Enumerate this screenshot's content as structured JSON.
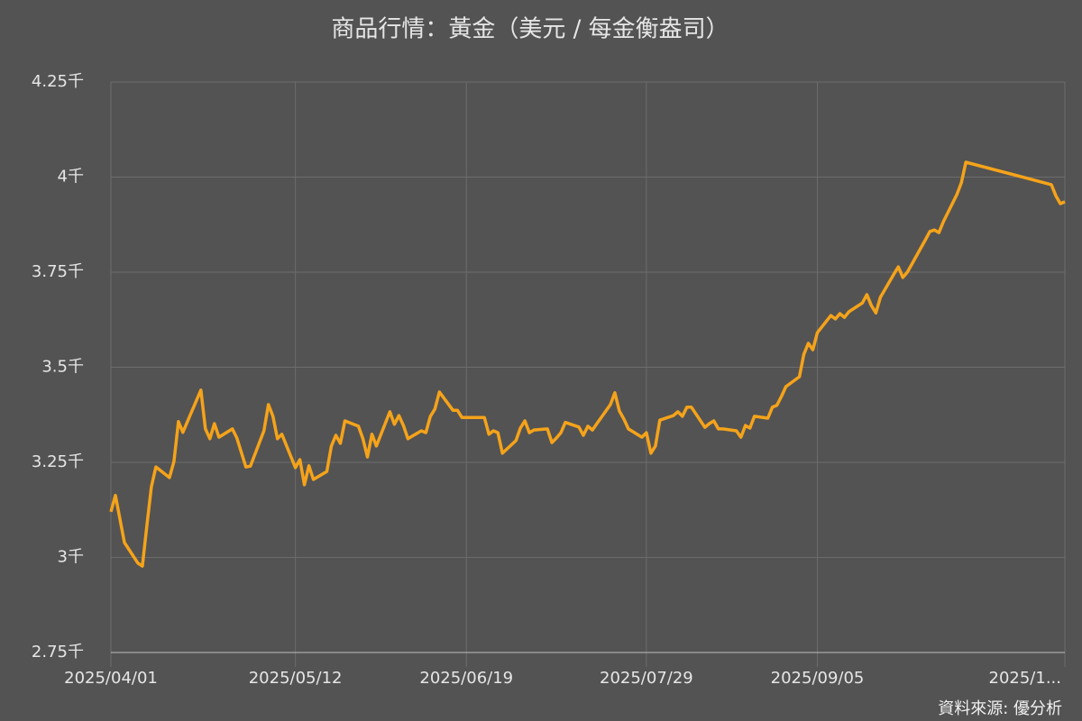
{
  "chart_data": {
    "type": "line",
    "title": "商品行情：黃金（美元 / 每金衡盎司）",
    "source": "資料來源: 優分析",
    "grid": true,
    "xlim": [
      "2025/04/01",
      "2025/10/30"
    ],
    "xticks": [
      "2025/04/01",
      "2025/05/12",
      "2025/06/19",
      "2025/07/29",
      "2025/09/05",
      {
        "value": "2025/10/30",
        "label": "2025/1..."
      }
    ],
    "ylim": [
      2.75,
      4.25
    ],
    "yticks": [
      {
        "value": 2.75,
        "label": "2.75千"
      },
      {
        "value": 3,
        "label": "3千"
      },
      {
        "value": 3.25,
        "label": "3.25千"
      },
      {
        "value": 3.5,
        "label": "3.5千"
      },
      {
        "value": 3.75,
        "label": "3.75千"
      },
      {
        "value": 4,
        "label": "4千"
      },
      {
        "value": 4.25,
        "label": "4.25千"
      }
    ],
    "x": [
      "2025/04/01",
      "2025/04/02",
      "2025/04/04",
      "2025/04/07",
      "2025/04/08",
      "2025/04/09",
      "2025/04/10",
      "2025/04/11",
      "2025/04/14",
      "2025/04/15",
      "2025/04/16",
      "2025/04/17",
      "2025/04/21",
      "2025/04/22",
      "2025/04/23",
      "2025/04/24",
      "2025/04/25",
      "2025/04/28",
      "2025/04/29",
      "2025/05/01",
      "2025/05/02",
      "2025/05/05",
      "2025/05/06",
      "2025/05/07",
      "2025/05/08",
      "2025/05/09",
      "2025/05/12",
      "2025/05/13",
      "2025/05/14",
      "2025/05/15",
      "2025/05/16",
      "2025/05/19",
      "2025/05/20",
      "2025/05/21",
      "2025/05/22",
      "2025/05/23",
      "2025/05/26",
      "2025/05/27",
      "2025/05/28",
      "2025/05/29",
      "2025/05/30",
      "2025/06/02",
      "2025/06/03",
      "2025/06/04",
      "2025/06/05",
      "2025/06/06",
      "2025/06/09",
      "2025/06/10",
      "2025/06/11",
      "2025/06/12",
      "2025/06/13",
      "2025/06/16",
      "2025/06/17",
      "2025/06/18",
      "2025/06/19",
      "2025/06/20",
      "2025/06/23",
      "2025/06/24",
      "2025/06/25",
      "2025/06/26",
      "2025/06/27",
      "2025/06/30",
      "2025/07/01",
      "2025/07/02",
      "2025/07/03",
      "2025/07/04",
      "2025/07/07",
      "2025/07/08",
      "2025/07/09",
      "2025/07/10",
      "2025/07/11",
      "2025/07/14",
      "2025/07/15",
      "2025/07/16",
      "2025/07/17",
      "2025/07/18",
      "2025/07/21",
      "2025/07/22",
      "2025/07/23",
      "2025/07/24",
      "2025/07/25",
      "2025/07/28",
      "2025/07/29",
      "2025/07/30",
      "2025/07/31",
      "2025/08/01",
      "2025/08/04",
      "2025/08/05",
      "2025/08/06",
      "2025/08/07",
      "2025/08/08",
      "2025/08/11",
      "2025/08/12",
      "2025/08/13",
      "2025/08/14",
      "2025/08/15",
      "2025/08/18",
      "2025/08/19",
      "2025/08/20",
      "2025/08/21",
      "2025/08/22",
      "2025/08/25",
      "2025/08/26",
      "2025/08/27",
      "2025/08/28",
      "2025/08/29",
      "2025/09/01",
      "2025/09/02",
      "2025/09/03",
      "2025/09/04",
      "2025/09/05",
      "2025/09/08",
      "2025/09/09",
      "2025/09/10",
      "2025/09/11",
      "2025/09/12",
      "2025/09/15",
      "2025/09/16",
      "2025/09/17",
      "2025/09/18",
      "2025/09/19",
      "2025/09/22",
      "2025/09/23",
      "2025/09/24",
      "2025/09/25",
      "2025/09/26",
      "2025/09/29",
      "2025/09/30",
      "2025/10/01",
      "2025/10/02",
      "2025/10/03",
      "2025/10/06",
      "2025/10/07",
      "2025/10/08",
      "2025/10/27",
      "2025/10/28",
      "2025/10/29",
      "2025/10/30"
    ],
    "series": [
      {
        "name": "黃金",
        "color": "#f5a31a",
        "values": [
          3.12,
          3.163,
          3.039,
          2.985,
          2.977,
          3.084,
          3.186,
          3.238,
          3.21,
          3.252,
          3.357,
          3.329,
          3.44,
          3.338,
          3.312,
          3.352,
          3.316,
          3.338,
          3.314,
          3.238,
          3.24,
          3.333,
          3.402,
          3.371,
          3.312,
          3.324,
          3.236,
          3.257,
          3.191,
          3.241,
          3.205,
          3.226,
          3.293,
          3.321,
          3.3,
          3.359,
          3.345,
          3.312,
          3.264,
          3.324,
          3.293,
          3.383,
          3.35,
          3.373,
          3.347,
          3.312,
          3.333,
          3.328,
          3.371,
          3.39,
          3.435,
          3.387,
          3.387,
          3.368,
          3.368,
          3.368,
          3.368,
          3.324,
          3.333,
          3.328,
          3.274,
          3.307,
          3.34,
          3.359,
          3.328,
          3.335,
          3.338,
          3.302,
          3.314,
          3.328,
          3.355,
          3.343,
          3.321,
          3.345,
          3.335,
          3.352,
          3.402,
          3.433,
          3.385,
          3.364,
          3.338,
          3.316,
          3.328,
          3.274,
          3.293,
          3.361,
          3.373,
          3.383,
          3.371,
          3.395,
          3.395,
          3.342,
          3.352,
          3.359,
          3.338,
          3.338,
          3.333,
          3.316,
          3.347,
          3.34,
          3.371,
          3.366,
          3.395,
          3.4,
          3.423,
          3.449,
          3.475,
          3.534,
          3.563,
          3.546,
          3.591,
          3.636,
          3.627,
          3.641,
          3.631,
          3.646,
          3.669,
          3.691,
          3.662,
          3.643,
          3.684,
          3.745,
          3.764,
          3.736,
          3.75,
          3.771,
          3.835,
          3.857,
          3.861,
          3.854,
          3.883,
          3.954,
          3.985,
          4.039,
          3.98,
          3.951,
          3.93,
          3.935
        ]
      }
    ]
  }
}
